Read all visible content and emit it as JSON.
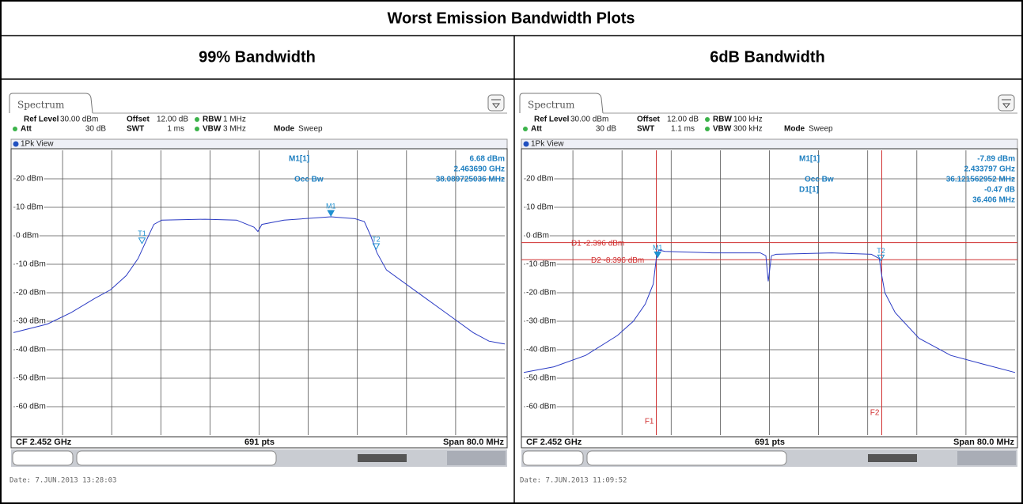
{
  "title": "Worst Emission Bandwidth Plots",
  "plots": [
    {
      "heading": "99% Bandwidth",
      "tab": "Spectrum",
      "settings": [
        {
          "label": "Ref Level",
          "value": "30.00 dBm"
        },
        {
          "label": "Offset",
          "value": "12.00 dB"
        },
        {
          "label": "RBW",
          "value": "1 MHz"
        },
        {
          "label": "Att",
          "value": "30 dB"
        },
        {
          "label": "SWT",
          "value": "1 ms"
        },
        {
          "label": "VBW",
          "value": "3 MHz"
        },
        {
          "label": "Mode",
          "value": "Sweep"
        }
      ],
      "view": "1Pk View",
      "readout": [
        {
          "label": "M1[1]",
          "value": "6.68 dBm"
        },
        {
          "value": "2.463690 GHz"
        },
        {
          "label": "Occ Bw",
          "value": "38.089725036 MHz"
        }
      ],
      "xlim": [
        2.412,
        2.492
      ],
      "ylim": [
        -70,
        30
      ],
      "yticks": [
        {
          "value": 20,
          "label": "20 dBm"
        },
        {
          "value": 10,
          "label": "10 dBm"
        },
        {
          "value": 0,
          "label": "0 dBm"
        },
        {
          "value": -10,
          "label": "-10 dBm"
        },
        {
          "value": -20,
          "label": "-20 dBm"
        },
        {
          "value": -30,
          "label": "-30 dBm"
        },
        {
          "value": -40,
          "label": "-40 dBm"
        },
        {
          "value": -50,
          "label": "-50 dBm"
        },
        {
          "value": -60,
          "label": "-60 dBm"
        }
      ],
      "trace": {
        "x": [
          2.412,
          2.41752,
          2.42137,
          2.42523,
          2.42779,
          2.43036,
          2.43229,
          2.43357,
          2.43486,
          2.43614,
          2.4432,
          2.44834,
          2.45117,
          2.45181,
          2.45245,
          2.45604,
          2.46369,
          2.4676,
          2.46914,
          2.47017,
          2.4712,
          2.47274,
          2.47659,
          2.47916,
          2.48173,
          2.4843,
          2.48686,
          2.48943,
          2.492
        ],
        "y": [
          -34,
          -31,
          -27,
          -22,
          -19,
          -14,
          -8,
          -2,
          4,
          5.5,
          5.8,
          5.5,
          3,
          1.5,
          4,
          5.5,
          6.68,
          6,
          5,
          0,
          -6,
          -12,
          -18,
          -22,
          -26,
          -30,
          -34,
          -37,
          -38
        ]
      },
      "markers": [
        {
          "label": "T1",
          "x": 2.43293,
          "y": -3
        },
        {
          "label": "M1",
          "x": 2.46369,
          "y": 6.68
        },
        {
          "label": "T2",
          "x": 2.47106,
          "y": -5
        }
      ],
      "hlines": [],
      "vlines": [],
      "footer": [
        "CF 2.452 GHz",
        "691 pts",
        "Span 80.0 MHz"
      ],
      "date": "Date: 7.JUN.2013  13:28:03"
    },
    {
      "heading": "6dB Bandwidth",
      "tab": "Spectrum",
      "settings": [
        {
          "label": "Ref Level",
          "value": "30.00 dBm"
        },
        {
          "label": "Offset",
          "value": "12.00 dB"
        },
        {
          "label": "RBW",
          "value": "100 kHz"
        },
        {
          "label": "Att",
          "value": "30 dB"
        },
        {
          "label": "SWT",
          "value": "1.1 ms"
        },
        {
          "label": "VBW",
          "value": "300 kHz"
        },
        {
          "label": "Mode",
          "value": "Sweep"
        }
      ],
      "view": "1Pk View",
      "readout": [
        {
          "label": "M1[1]",
          "value": "-7.89 dBm"
        },
        {
          "value": "2.433797 GHz"
        },
        {
          "label": "Occ Bw",
          "value": "36.121562952 MHz"
        },
        {
          "label": "D1[1]",
          "value": "-0.47 dB"
        },
        {
          "value": "36.406 MHz"
        }
      ],
      "xlim": [
        2.412,
        2.492
      ],
      "ylim": [
        -70,
        30
      ],
      "yticks": [
        {
          "value": 20,
          "label": "20 dBm"
        },
        {
          "value": 10,
          "label": "10 dBm"
        },
        {
          "value": 0,
          "label": "0 dBm"
        },
        {
          "value": -10,
          "label": "-10 dBm"
        },
        {
          "value": -20,
          "label": "-20 dBm"
        },
        {
          "value": -30,
          "label": "-30 dBm"
        },
        {
          "value": -40,
          "label": "-40 dBm"
        },
        {
          "value": -50,
          "label": "-50 dBm"
        },
        {
          "value": -60,
          "label": "-60 dBm"
        }
      ],
      "trace": {
        "x": [
          2.412,
          2.41691,
          2.42208,
          2.42725,
          2.42984,
          2.43177,
          2.43307,
          2.43358,
          2.43397,
          2.435,
          2.44276,
          2.45051,
          2.45142,
          2.45181,
          2.45232,
          2.4531,
          2.46215,
          2.46861,
          2.4699,
          2.47029,
          2.4708,
          2.47248,
          2.47636,
          2.48153,
          2.4867,
          2.492
        ],
        "y": [
          -48,
          -46,
          -42,
          -35,
          -30,
          -24,
          -17,
          -8,
          -5,
          -5.5,
          -6,
          -6,
          -7,
          -16,
          -7,
          -6.5,
          -6,
          -6.5,
          -8,
          -14,
          -20,
          -27,
          -36,
          -42,
          -45,
          -48
        ]
      },
      "markers": [
        {
          "label": "M1",
          "x": 2.433797,
          "y": -7.89
        },
        {
          "label": "T2",
          "x": 2.47016,
          "y": -9
        }
      ],
      "hlines": [
        {
          "value": -2.396,
          "label": "D1  -2.396 dBm"
        },
        {
          "value": -8.396,
          "label": "D2  -8.396 dBm"
        }
      ],
      "vlines": [
        {
          "value": 2.43358,
          "label": "F1"
        },
        {
          "value": 2.47029,
          "label": "F2"
        }
      ],
      "footer": [
        "CF 2.452 GHz",
        "691 pts",
        "Span 80.0 MHz"
      ],
      "date": "Date: 7.JUN.2013  11:09:52"
    }
  ]
}
